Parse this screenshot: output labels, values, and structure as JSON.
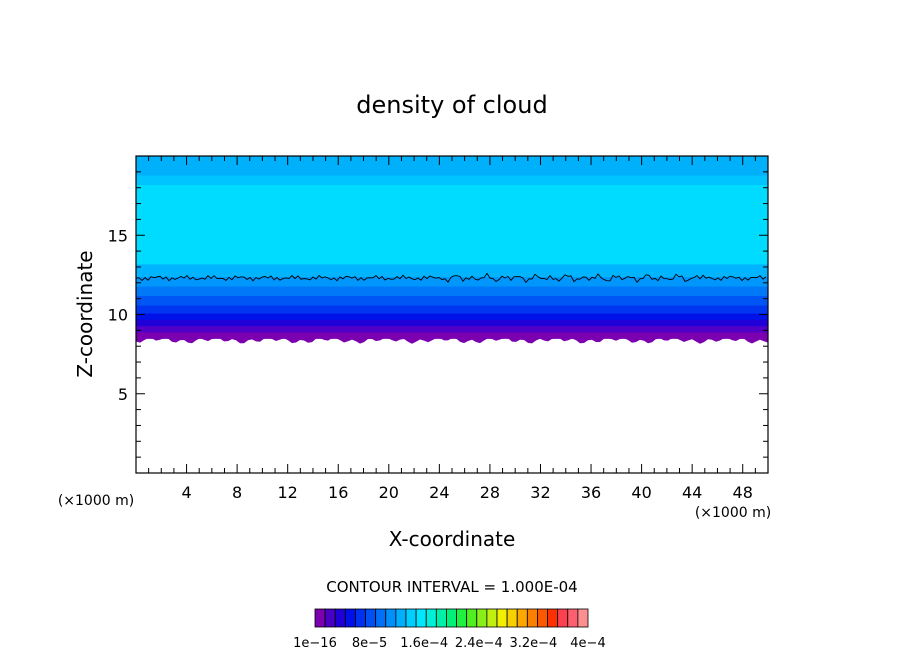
{
  "chart_data": {
    "type": "heatmap",
    "title": "density of cloud",
    "xlabel": "X-coordinate",
    "ylabel": "Z-coordinate",
    "x_unit_left": "(×1000 m)",
    "x_unit_right": "(×1000 m)",
    "xlim": [
      0,
      50
    ],
    "ylim": [
      0,
      20
    ],
    "xticks": [
      4,
      8,
      12,
      16,
      20,
      24,
      28,
      32,
      36,
      40,
      44,
      48
    ],
    "yticks": [
      5,
      10,
      15
    ],
    "cloud_base_z": 8.5,
    "cloud_top_z": 20,
    "contour_line_z": 12.3,
    "layers": [
      {
        "z0": 8.5,
        "z1": 8.9,
        "color": "#7a00b0"
      },
      {
        "z0": 8.9,
        "z1": 9.3,
        "color": "#5200c8"
      },
      {
        "z0": 9.3,
        "z1": 9.7,
        "color": "#2000d8"
      },
      {
        "z0": 9.7,
        "z1": 10.1,
        "color": "#0012e8"
      },
      {
        "z0": 10.1,
        "z1": 10.6,
        "color": "#0036f0"
      },
      {
        "z0": 10.6,
        "z1": 11.2,
        "color": "#0056f4"
      },
      {
        "z0": 11.2,
        "z1": 11.8,
        "color": "#0078f8"
      },
      {
        "z0": 11.8,
        "z1": 12.4,
        "color": "#0096fc"
      },
      {
        "z0": 12.4,
        "z1": 13.2,
        "color": "#00b4ff"
      },
      {
        "z0": 13.2,
        "z1": 18.2,
        "color": "#00dcff"
      },
      {
        "z0": 18.2,
        "z1": 18.8,
        "color": "#00c4ff"
      },
      {
        "z0": 18.8,
        "z1": 20,
        "color": "#00b0fa"
      }
    ],
    "contour_interval_label": "CONTOUR INTERVAL = 1.000E-04",
    "colorbar": {
      "colors": [
        "#7a00b0",
        "#4a00c4",
        "#2000d8",
        "#0010e8",
        "#0030f0",
        "#0050f4",
        "#0070f8",
        "#0090fc",
        "#00b0ff",
        "#00d0ff",
        "#00e8ff",
        "#00f0d8",
        "#00f0a8",
        "#00f078",
        "#20f040",
        "#50f020",
        "#88f018",
        "#c0f010",
        "#f0f000",
        "#f8d000",
        "#fca800",
        "#fc8000",
        "#fc5800",
        "#fc3000",
        "#fc4050",
        "#fc6070",
        "#fc9090"
      ],
      "labels": [
        "1e−16",
        "8e−5",
        "1.6e−4",
        "2.4e−4",
        "3.2e−4",
        "4e−4"
      ]
    }
  }
}
